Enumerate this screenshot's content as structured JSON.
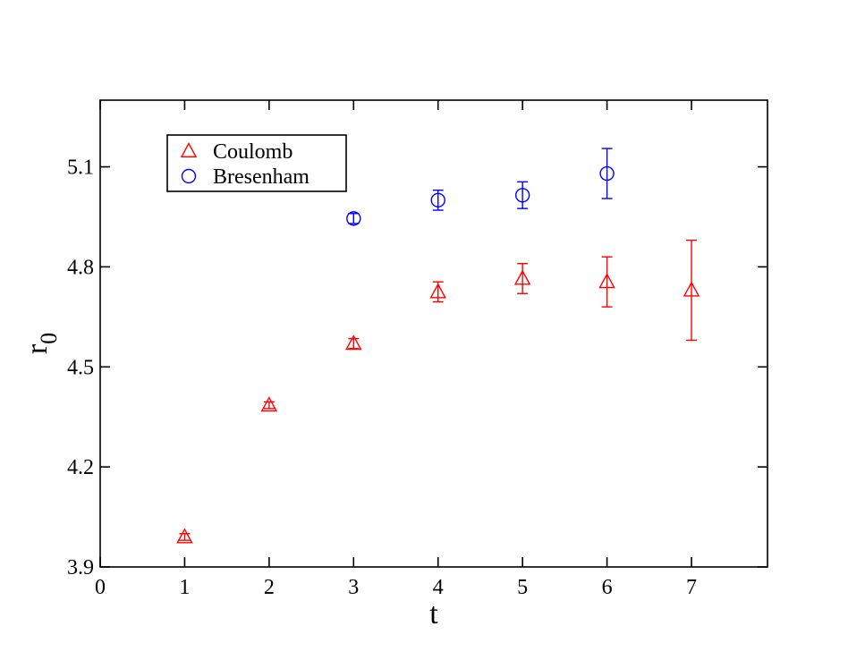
{
  "chart_data": {
    "type": "scatter",
    "xlabel": "t",
    "ylabel": "r",
    "ylabel_subscript": "0",
    "xlim": [
      0,
      7.9
    ],
    "ylim": [
      3.9,
      5.3
    ],
    "xticks": [
      0,
      1,
      2,
      3,
      4,
      5,
      6,
      7
    ],
    "yticks": [
      3.9,
      4.2,
      4.5,
      4.8,
      5.1
    ],
    "ytick_labels": [
      "3.9",
      "4.2",
      "4.5",
      "4.8",
      "5.1"
    ],
    "grid": false,
    "legend_position": "top-left",
    "series": [
      {
        "name": "Coulomb",
        "marker": "triangle",
        "color": "#ff0000",
        "x": [
          1,
          2,
          3,
          4,
          5,
          6,
          7
        ],
        "y": [
          3.99,
          4.385,
          4.57,
          4.725,
          4.765,
          4.755,
          4.73
        ],
        "error": [
          0.01,
          0.01,
          0.015,
          0.03,
          0.045,
          0.075,
          0.15
        ]
      },
      {
        "name": "Bresenham",
        "marker": "circle",
        "color": "#0000ff",
        "x": [
          3,
          4,
          5,
          6
        ],
        "y": [
          4.945,
          5.0,
          5.015,
          5.08
        ],
        "error": [
          0.015,
          0.03,
          0.04,
          0.075
        ]
      }
    ]
  }
}
